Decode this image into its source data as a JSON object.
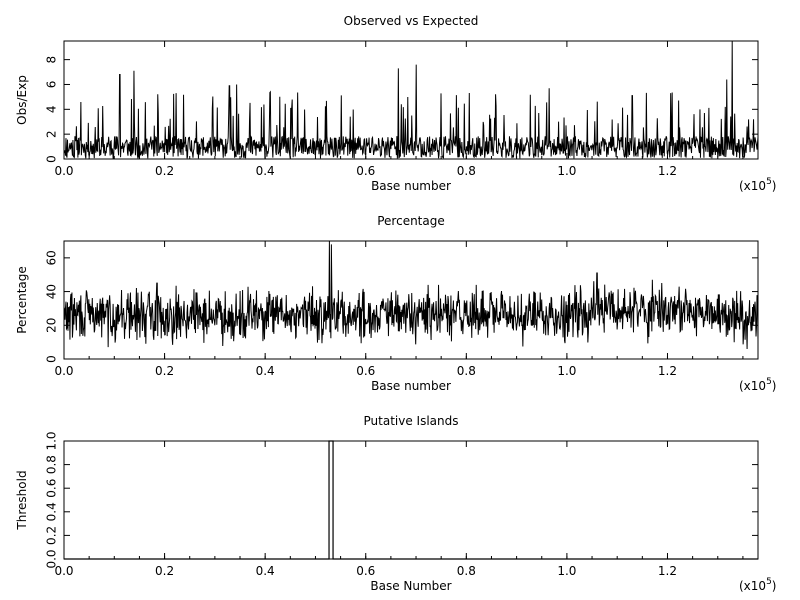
{
  "chart_data": [
    {
      "type": "line",
      "title": "Observed vs Expected",
      "xlabel": "Base number",
      "ylabel": "Obs/Exp",
      "x_multiplier": "(x10",
      "x_multiplier_exp": "5",
      "x_multiplier_close": ")",
      "xlim": [
        0,
        138000
      ],
      "ylim": [
        0,
        9.5
      ],
      "xticks": [
        0,
        20000,
        40000,
        60000,
        80000,
        100000,
        120000
      ],
      "xtick_labels": [
        "0.0",
        "0.2",
        "0.4",
        "0.6",
        "0.8",
        "1.0",
        "1.2"
      ],
      "yticks": [
        0,
        2,
        4,
        6,
        8
      ],
      "ytick_labels": [
        "0",
        "2",
        "4",
        "6",
        "8"
      ],
      "signal": {
        "kind": "spiky",
        "samples": 1400,
        "base": 0.9,
        "spread": 1.6,
        "seed": 11
      },
      "peaks": [
        {
          "x": 11100,
          "y": 6.8
        },
        {
          "x": 13900,
          "y": 7.1
        },
        {
          "x": 22300,
          "y": 5.3
        },
        {
          "x": 32900,
          "y": 5.9
        },
        {
          "x": 34300,
          "y": 6.0
        },
        {
          "x": 41000,
          "y": 5.4
        },
        {
          "x": 66500,
          "y": 7.3
        },
        {
          "x": 70000,
          "y": 7.6
        },
        {
          "x": 96500,
          "y": 5.7
        },
        {
          "x": 113000,
          "y": 5.1
        },
        {
          "x": 131800,
          "y": 6.4
        },
        {
          "x": 132900,
          "y": 9.5
        }
      ]
    },
    {
      "type": "line",
      "title": "Percentage",
      "xlabel": "Base number",
      "ylabel": "Percentage",
      "x_multiplier": "(x10",
      "x_multiplier_exp": "5",
      "x_multiplier_close": ")",
      "xlim": [
        0,
        138000
      ],
      "ylim": [
        0,
        70
      ],
      "xticks": [
        0,
        20000,
        40000,
        60000,
        80000,
        100000,
        120000
      ],
      "xtick_labels": [
        "0.0",
        "0.2",
        "0.4",
        "0.6",
        "0.8",
        "1.0",
        "1.2"
      ],
      "yticks": [
        0,
        20,
        40,
        60
      ],
      "ytick_labels": [
        "0",
        "20",
        "40",
        "60"
      ],
      "signal": {
        "kind": "noisy",
        "samples": 1400,
        "base": 26,
        "spread": 16,
        "seed": 29
      },
      "peaks": [
        {
          "x": 52800,
          "y": 70
        },
        {
          "x": 53200,
          "y": 68
        },
        {
          "x": 106000,
          "y": 51
        },
        {
          "x": 117000,
          "y": 47
        },
        {
          "x": 18500,
          "y": 45
        },
        {
          "x": 82000,
          "y": 44
        }
      ]
    },
    {
      "type": "line",
      "title": "Putative Islands",
      "xlabel": "Base Number",
      "ylabel": "Threshold",
      "x_multiplier": "(x10",
      "x_multiplier_exp": "5",
      "x_multiplier_close": ")",
      "xlim": [
        0,
        138000
      ],
      "ylim": [
        0,
        1
      ],
      "xticks": [
        0,
        20000,
        40000,
        60000,
        80000,
        100000,
        120000
      ],
      "xtick_labels": [
        "0.0",
        "0.2",
        "0.4",
        "0.6",
        "0.8",
        "1.0",
        "1.2"
      ],
      "yticks": [
        0,
        0.2,
        0.4,
        0.6,
        0.8,
        1.0
      ],
      "ytick_labels": [
        "0.0",
        "0.2",
        "0.4",
        "0.6",
        "0.8",
        "1.0"
      ],
      "islands": [
        {
          "start": 52700,
          "end": 53500
        }
      ]
    }
  ]
}
